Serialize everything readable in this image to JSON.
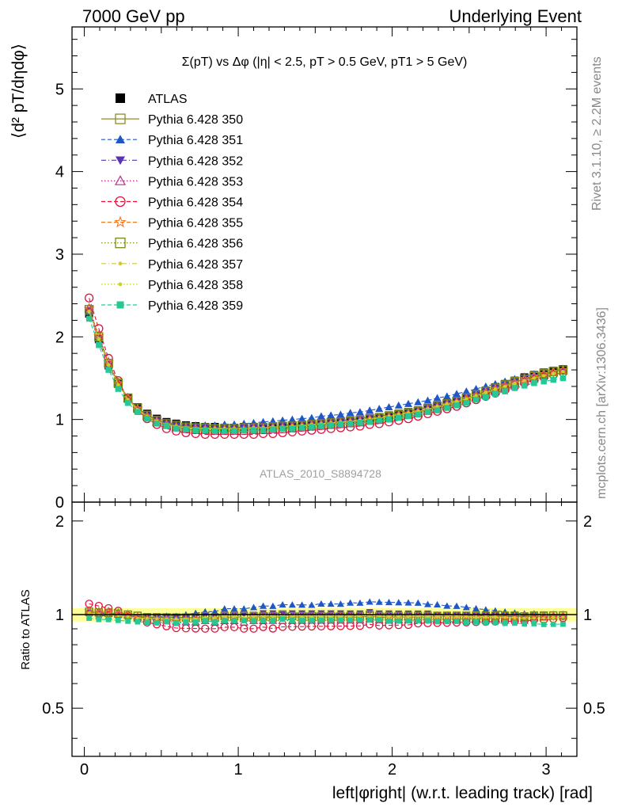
{
  "header": {
    "left": "7000 GeV pp",
    "right": "Underlying Event"
  },
  "side_labels": {
    "rivet": "Rivet 3.1.10, ≥ 2.2M events",
    "mcplots": "mcplots.cern.ch [arXiv:1306.3436]"
  },
  "watermark": "ATLAS_2010_S8894728",
  "colors": {
    "data": "#000000",
    "350": "#8c8c2e",
    "351": "#1f57c7",
    "352": "#5a32b4",
    "353": "#b4328c",
    "354": "#dc143c",
    "355": "#f07828",
    "356": "#788c14",
    "357": "#d2c83c",
    "358": "#c8d228",
    "359": "#28c896",
    "band": "#ffff99"
  },
  "chart_data": [
    {
      "type": "scatter",
      "panel": "main",
      "title": "Σ(pT) vs Δφ (|η| < 2.5, pT > 0.5 GeV, pT1 > 5 GeV)",
      "ylabel": "⟨d² pT/dηdφ⟩",
      "xlim": [
        -0.08,
        3.2
      ],
      "ylim": [
        0,
        5.75
      ],
      "yticks": [
        0,
        1,
        2,
        3,
        4,
        5
      ],
      "legend_position": "top-left",
      "x": [
        0.031,
        0.094,
        0.157,
        0.22,
        0.283,
        0.346,
        0.408,
        0.471,
        0.534,
        0.597,
        0.66,
        0.723,
        0.785,
        0.848,
        0.911,
        0.974,
        1.037,
        1.1,
        1.162,
        1.225,
        1.288,
        1.351,
        1.414,
        1.477,
        1.539,
        1.602,
        1.665,
        1.728,
        1.791,
        1.854,
        1.916,
        1.979,
        2.042,
        2.105,
        2.168,
        2.231,
        2.293,
        2.356,
        2.419,
        2.482,
        2.545,
        2.608,
        2.67,
        2.733,
        2.796,
        2.859,
        2.922,
        2.985,
        3.047,
        3.11
      ],
      "series": [
        {
          "name": "ATLAS",
          "key": "data",
          "marker": "square-filled",
          "line": "none",
          "values": [
            2.28,
            1.97,
            1.66,
            1.43,
            1.26,
            1.15,
            1.07,
            1.01,
            0.97,
            0.95,
            0.93,
            0.92,
            0.91,
            0.91,
            0.9,
            0.9,
            0.91,
            0.91,
            0.91,
            0.92,
            0.92,
            0.93,
            0.94,
            0.95,
            0.96,
            0.97,
            0.98,
            0.99,
            1.0,
            1.01,
            1.03,
            1.05,
            1.07,
            1.09,
            1.11,
            1.14,
            1.17,
            1.2,
            1.23,
            1.27,
            1.31,
            1.35,
            1.39,
            1.43,
            1.47,
            1.51,
            1.54,
            1.57,
            1.59,
            1.61
          ]
        },
        {
          "name": "Pythia 6.428 350",
          "key": "350",
          "marker": "square-open",
          "line": "solid",
          "values": [
            2.33,
            2.0,
            1.68,
            1.44,
            1.26,
            1.14,
            1.05,
            0.99,
            0.95,
            0.93,
            0.91,
            0.9,
            0.89,
            0.89,
            0.89,
            0.89,
            0.89,
            0.89,
            0.9,
            0.9,
            0.91,
            0.92,
            0.92,
            0.93,
            0.94,
            0.95,
            0.96,
            0.97,
            0.98,
            1.0,
            1.01,
            1.03,
            1.05,
            1.07,
            1.09,
            1.12,
            1.15,
            1.18,
            1.21,
            1.25,
            1.29,
            1.33,
            1.37,
            1.41,
            1.45,
            1.49,
            1.52,
            1.55,
            1.58,
            1.6
          ]
        },
        {
          "name": "Pythia 6.428 351",
          "key": "351",
          "marker": "triangle-up-filled",
          "line": "dashed",
          "values": [
            2.3,
            1.96,
            1.64,
            1.42,
            1.24,
            1.13,
            1.04,
            0.99,
            0.96,
            0.94,
            0.93,
            0.93,
            0.93,
            0.93,
            0.94,
            0.94,
            0.95,
            0.96,
            0.97,
            0.98,
            0.99,
            1.0,
            1.01,
            1.02,
            1.04,
            1.05,
            1.06,
            1.08,
            1.09,
            1.11,
            1.13,
            1.15,
            1.17,
            1.19,
            1.21,
            1.23,
            1.26,
            1.28,
            1.31,
            1.34,
            1.37,
            1.4,
            1.43,
            1.46,
            1.49,
            1.52,
            1.55,
            1.57,
            1.59,
            1.61
          ]
        },
        {
          "name": "Pythia 6.428 352",
          "key": "352",
          "marker": "triangle-down-filled",
          "line": "dashdot",
          "values": [
            2.32,
            1.99,
            1.67,
            1.43,
            1.25,
            1.13,
            1.05,
            0.99,
            0.95,
            0.93,
            0.91,
            0.91,
            0.9,
            0.9,
            0.9,
            0.9,
            0.91,
            0.91,
            0.92,
            0.93,
            0.93,
            0.94,
            0.95,
            0.96,
            0.97,
            0.98,
            0.99,
            1.0,
            1.01,
            1.03,
            1.04,
            1.06,
            1.08,
            1.1,
            1.12,
            1.15,
            1.17,
            1.2,
            1.23,
            1.27,
            1.3,
            1.34,
            1.38,
            1.41,
            1.45,
            1.48,
            1.51,
            1.54,
            1.56,
            1.58
          ]
        },
        {
          "name": "Pythia 6.428 353",
          "key": "353",
          "marker": "triangle-up-open",
          "line": "dotted",
          "values": [
            2.35,
            2.02,
            1.7,
            1.45,
            1.26,
            1.13,
            1.04,
            0.97,
            0.93,
            0.9,
            0.88,
            0.87,
            0.87,
            0.86,
            0.86,
            0.86,
            0.86,
            0.87,
            0.87,
            0.88,
            0.88,
            0.89,
            0.9,
            0.91,
            0.92,
            0.93,
            0.94,
            0.95,
            0.96,
            0.98,
            0.99,
            1.01,
            1.03,
            1.05,
            1.07,
            1.1,
            1.13,
            1.16,
            1.19,
            1.23,
            1.27,
            1.31,
            1.35,
            1.39,
            1.43,
            1.47,
            1.51,
            1.54,
            1.57,
            1.59
          ]
        },
        {
          "name": "Pythia 6.428 354",
          "key": "354",
          "marker": "circle-open",
          "line": "dashed",
          "values": [
            2.47,
            2.1,
            1.74,
            1.47,
            1.25,
            1.11,
            1.01,
            0.94,
            0.89,
            0.86,
            0.84,
            0.83,
            0.82,
            0.82,
            0.82,
            0.82,
            0.82,
            0.82,
            0.83,
            0.83,
            0.84,
            0.85,
            0.86,
            0.87,
            0.88,
            0.89,
            0.9,
            0.91,
            0.92,
            0.94,
            0.95,
            0.97,
            0.99,
            1.01,
            1.04,
            1.07,
            1.1,
            1.13,
            1.16,
            1.2,
            1.24,
            1.28,
            1.32,
            1.36,
            1.4,
            1.44,
            1.48,
            1.51,
            1.54,
            1.57
          ]
        },
        {
          "name": "Pythia 6.428 355",
          "key": "355",
          "marker": "star-open",
          "line": "dashed",
          "values": [
            2.34,
            2.01,
            1.69,
            1.44,
            1.26,
            1.13,
            1.04,
            0.98,
            0.94,
            0.91,
            0.9,
            0.89,
            0.88,
            0.88,
            0.88,
            0.88,
            0.88,
            0.89,
            0.89,
            0.9,
            0.9,
            0.91,
            0.92,
            0.93,
            0.94,
            0.95,
            0.96,
            0.97,
            0.98,
            1.0,
            1.01,
            1.03,
            1.05,
            1.07,
            1.09,
            1.12,
            1.15,
            1.18,
            1.21,
            1.25,
            1.29,
            1.33,
            1.37,
            1.41,
            1.45,
            1.49,
            1.52,
            1.55,
            1.58,
            1.6
          ]
        },
        {
          "name": "Pythia 6.428 356",
          "key": "356",
          "marker": "square-open",
          "line": "dotted",
          "values": [
            2.33,
            2.0,
            1.68,
            1.44,
            1.26,
            1.14,
            1.05,
            0.99,
            0.95,
            0.93,
            0.91,
            0.9,
            0.9,
            0.89,
            0.89,
            0.89,
            0.9,
            0.9,
            0.9,
            0.91,
            0.92,
            0.92,
            0.93,
            0.94,
            0.95,
            0.96,
            0.97,
            0.98,
            0.99,
            1.01,
            1.02,
            1.04,
            1.06,
            1.08,
            1.1,
            1.13,
            1.16,
            1.19,
            1.22,
            1.26,
            1.3,
            1.34,
            1.38,
            1.42,
            1.46,
            1.49,
            1.53,
            1.56,
            1.58,
            1.6
          ]
        },
        {
          "name": "Pythia 6.428 357",
          "key": "357",
          "marker": "dot",
          "line": "dashdot",
          "values": [
            2.31,
            1.98,
            1.66,
            1.42,
            1.24,
            1.12,
            1.04,
            0.98,
            0.94,
            0.92,
            0.9,
            0.89,
            0.89,
            0.89,
            0.89,
            0.89,
            0.89,
            0.9,
            0.9,
            0.91,
            0.91,
            0.92,
            0.93,
            0.94,
            0.95,
            0.96,
            0.97,
            0.98,
            0.99,
            1.01,
            1.02,
            1.04,
            1.06,
            1.08,
            1.1,
            1.13,
            1.16,
            1.19,
            1.22,
            1.25,
            1.29,
            1.33,
            1.37,
            1.4,
            1.44,
            1.47,
            1.5,
            1.53,
            1.56,
            1.58
          ]
        },
        {
          "name": "Pythia 6.428 358",
          "key": "358",
          "marker": "dot",
          "line": "dotted",
          "values": [
            2.3,
            1.97,
            1.66,
            1.42,
            1.24,
            1.12,
            1.04,
            0.98,
            0.94,
            0.92,
            0.9,
            0.89,
            0.89,
            0.89,
            0.89,
            0.89,
            0.89,
            0.89,
            0.9,
            0.9,
            0.91,
            0.92,
            0.92,
            0.93,
            0.94,
            0.95,
            0.96,
            0.97,
            0.99,
            1.0,
            1.02,
            1.03,
            1.05,
            1.07,
            1.1,
            1.12,
            1.15,
            1.18,
            1.21,
            1.25,
            1.28,
            1.32,
            1.36,
            1.4,
            1.43,
            1.47,
            1.5,
            1.53,
            1.55,
            1.58
          ]
        },
        {
          "name": "Pythia 6.428 359",
          "key": "359",
          "marker": "square-filled-small",
          "line": "dashed",
          "values": [
            2.22,
            1.9,
            1.6,
            1.37,
            1.2,
            1.09,
            1.01,
            0.95,
            0.92,
            0.89,
            0.88,
            0.87,
            0.87,
            0.86,
            0.86,
            0.86,
            0.87,
            0.87,
            0.87,
            0.88,
            0.89,
            0.89,
            0.9,
            0.91,
            0.92,
            0.93,
            0.94,
            0.95,
            0.96,
            0.97,
            0.99,
            1.0,
            1.02,
            1.04,
            1.06,
            1.09,
            1.11,
            1.14,
            1.17,
            1.2,
            1.24,
            1.27,
            1.31,
            1.34,
            1.38,
            1.41,
            1.44,
            1.46,
            1.48,
            1.5
          ]
        }
      ]
    },
    {
      "type": "scatter",
      "panel": "ratio",
      "ylabel": "Ratio to ATLAS",
      "xlabel": "left|φright| (w.r.t. leading track) [rad]",
      "xlim": [
        -0.08,
        3.2
      ],
      "ylim": [
        0.35,
        2.3
      ],
      "ylog": true,
      "yticks": [
        0.5,
        1,
        2
      ],
      "xticks": [
        0,
        1,
        2,
        3
      ],
      "reference_band": "± ATLAS uncertainty (yellow band around 1)"
    }
  ]
}
